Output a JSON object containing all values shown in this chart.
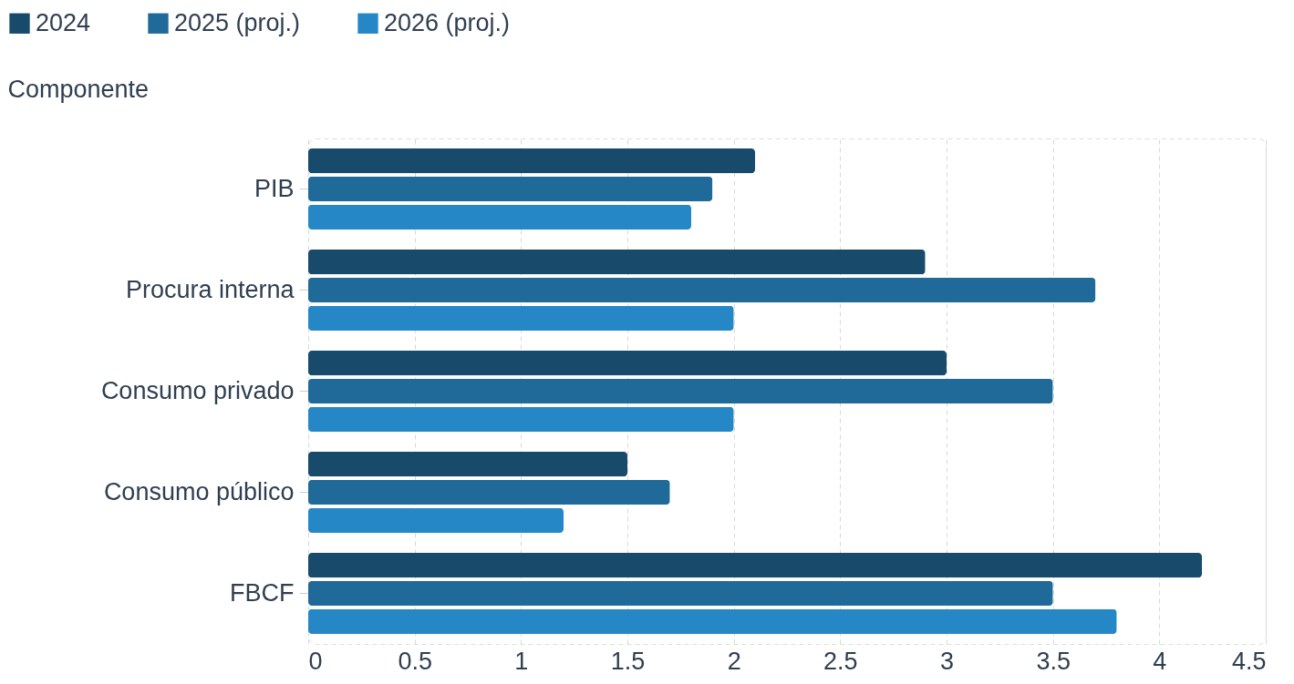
{
  "chart_data": {
    "type": "bar",
    "orientation": "horizontal",
    "ylabel": "Componente",
    "categories": [
      "PIB",
      "Procura interna",
      "Consumo privado",
      "Consumo público",
      "FBCF"
    ],
    "series": [
      {
        "name": "2024",
        "color": "#174a6b",
        "values": [
          2.1,
          2.9,
          3.0,
          1.5,
          4.2
        ]
      },
      {
        "name": "2025 (proj.)",
        "color": "#1f6a99",
        "values": [
          1.9,
          3.7,
          3.5,
          1.7,
          3.5
        ]
      },
      {
        "name": "2026 (proj.)",
        "color": "#2587c6",
        "values": [
          1.8,
          2.0,
          2.0,
          1.2,
          3.8
        ]
      }
    ],
    "xlim": [
      0,
      4.5
    ],
    "xticks": [
      0,
      0.5,
      1,
      1.5,
      2,
      2.5,
      3,
      3.5,
      4,
      4.5
    ],
    "grid": "x",
    "legend": "top left"
  }
}
